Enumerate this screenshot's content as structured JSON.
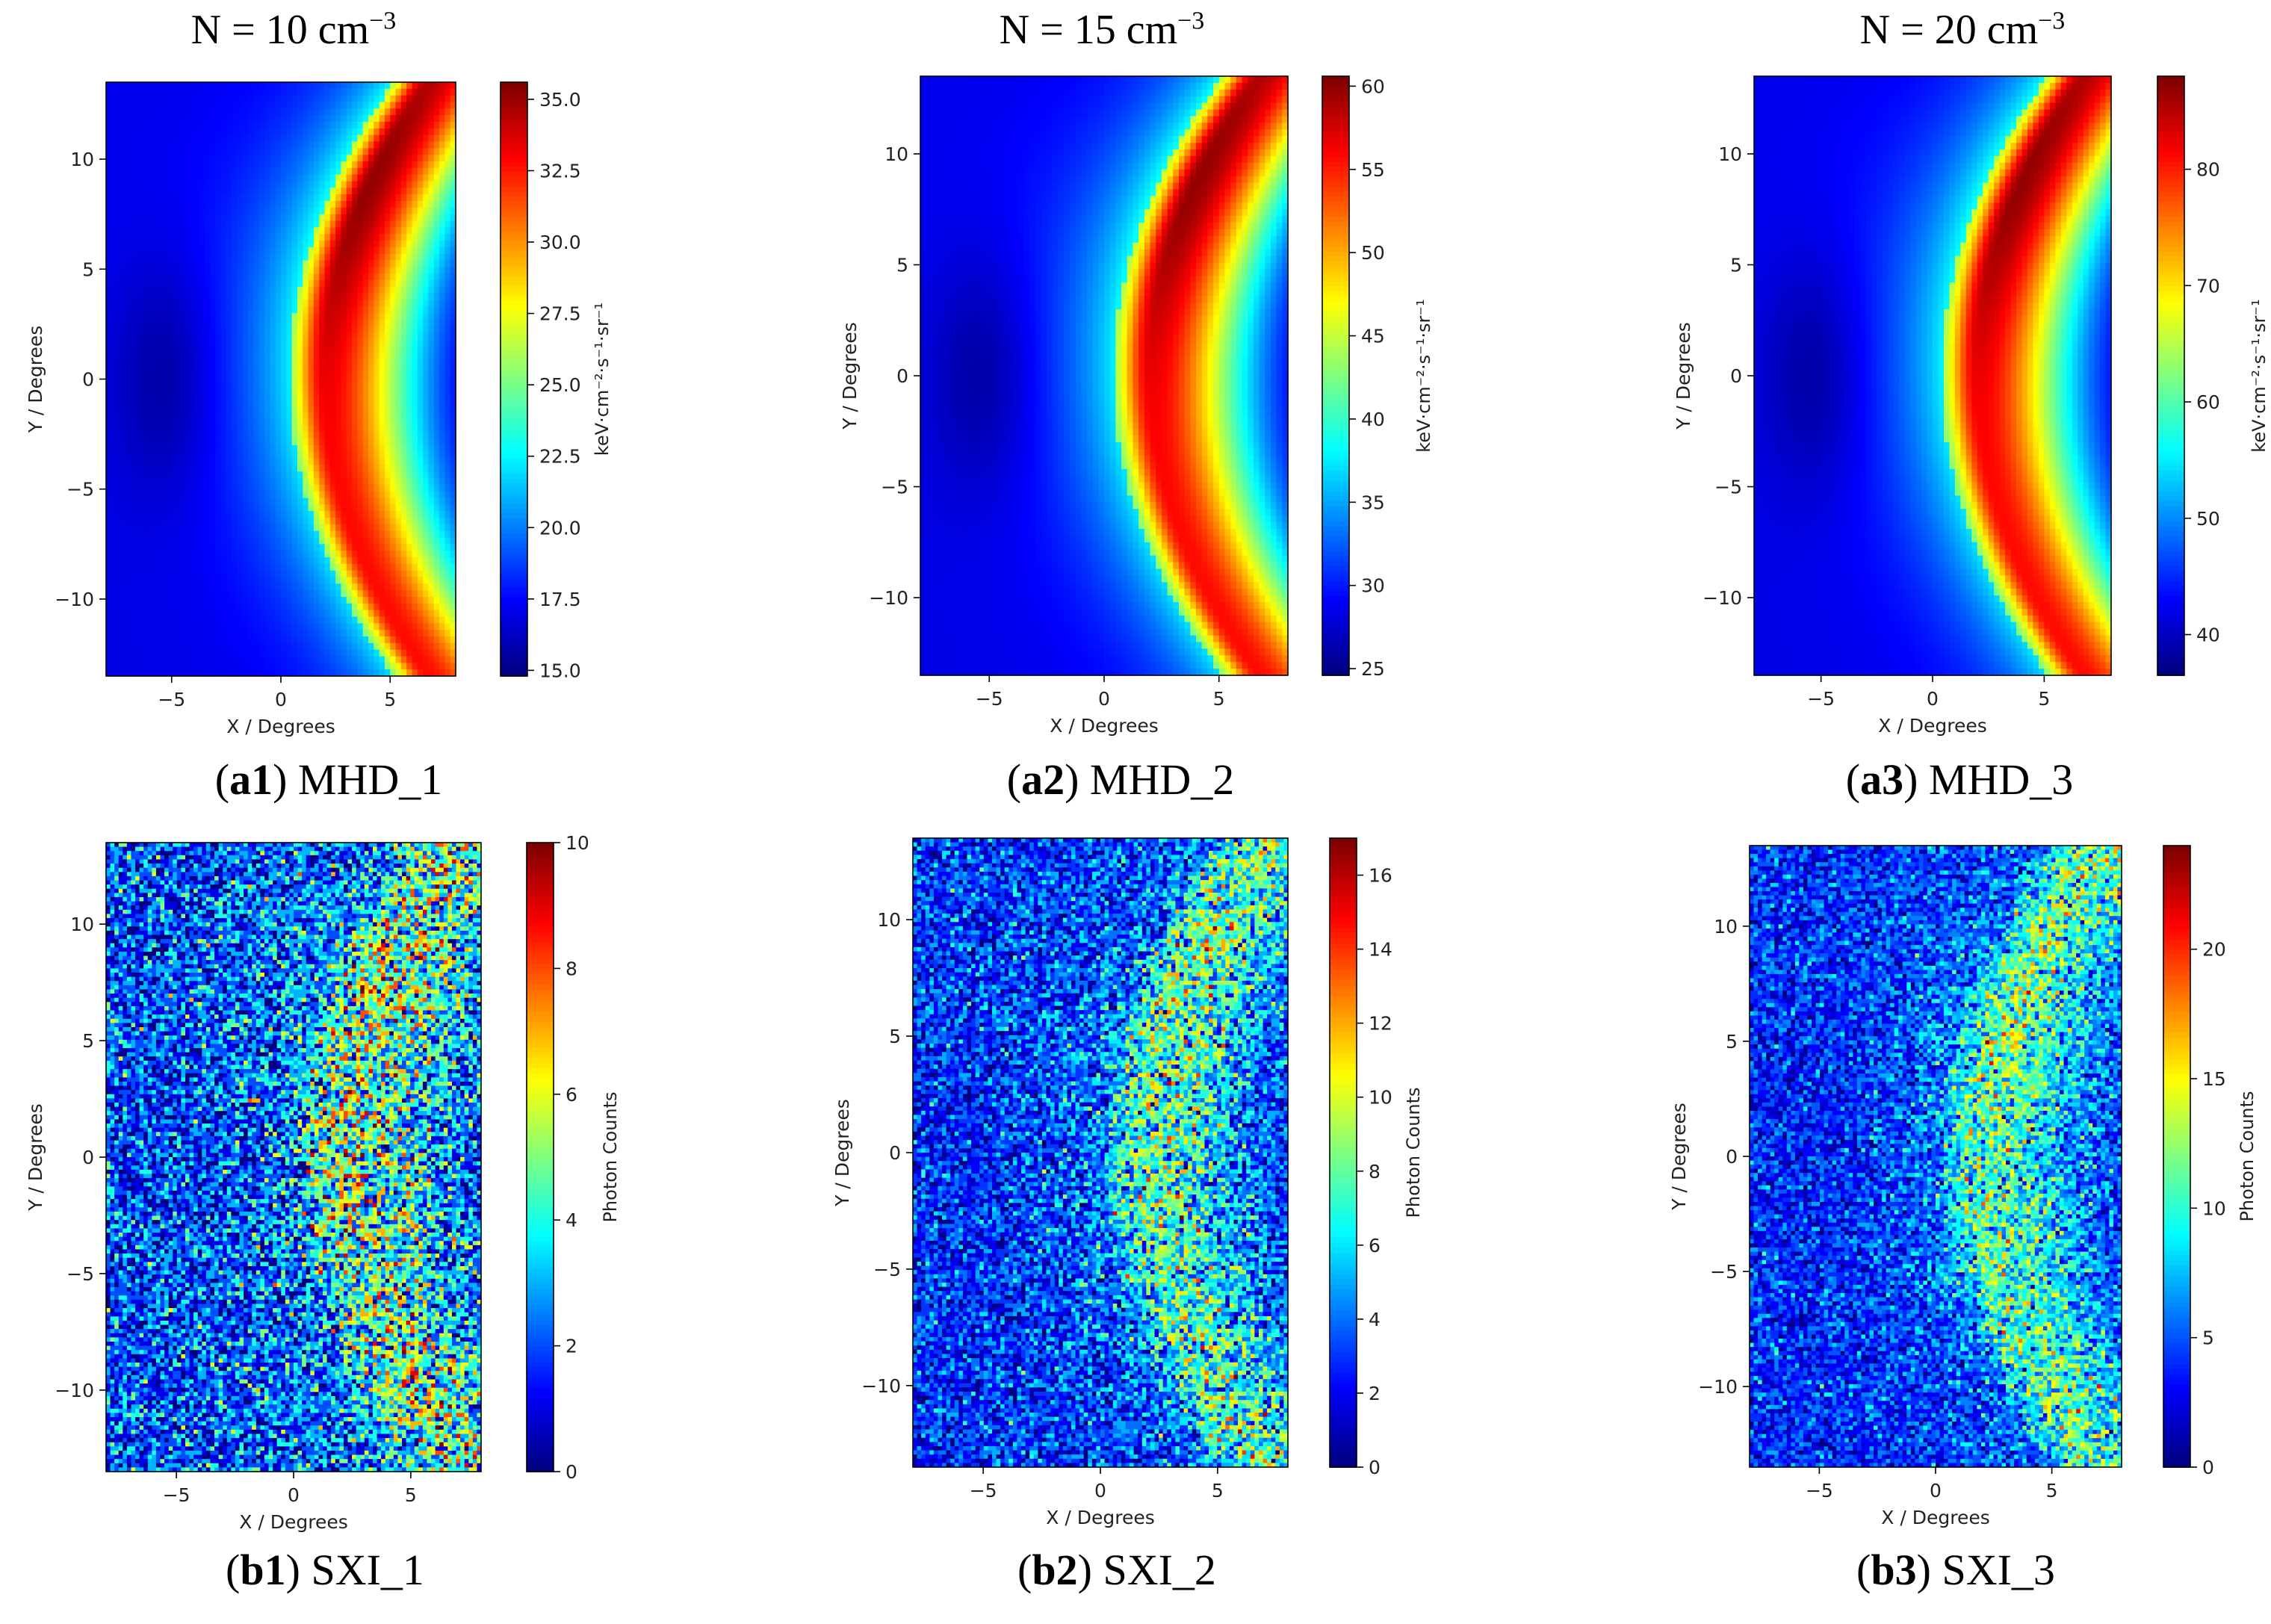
{
  "column_titles": [
    {
      "prefix": "N = ",
      "value": "10",
      "unit": " cm",
      "exp": "−3"
    },
    {
      "prefix": "N = ",
      "value": "15",
      "unit": " cm",
      "exp": "−3"
    },
    {
      "prefix": "N = ",
      "value": "20",
      "unit": " cm",
      "exp": "−3"
    }
  ],
  "captions": [
    {
      "tag": "a1",
      "name": "MHD_1"
    },
    {
      "tag": "a2",
      "name": "MHD_2"
    },
    {
      "tag": "a3",
      "name": "MHD_3"
    },
    {
      "tag": "b1",
      "name": "SXI_1"
    },
    {
      "tag": "b2",
      "name": "SXI_2"
    },
    {
      "tag": "b3",
      "name": "SXI_3"
    }
  ],
  "chart_data": [
    {
      "id": "a1",
      "type": "heatmap",
      "kind": "mhd",
      "title": "MHD_1",
      "xlabel": "X / Degrees",
      "ylabel": "Y / Degrees",
      "xlim": [
        -8,
        8
      ],
      "ylim": [
        -13.5,
        13.5
      ],
      "xticks": [
        -5,
        0,
        5
      ],
      "yticks": [
        -10,
        -5,
        0,
        5,
        10
      ],
      "cbar_label": "keV·cm⁻²·s⁻¹·sr⁻¹",
      "clim": [
        14.8,
        35.6
      ],
      "cbar_ticks": [
        "15.0",
        "17.5",
        "20.0",
        "22.5",
        "25.0",
        "27.5",
        "30.0",
        "32.5",
        "35.0"
      ],
      "cbar_tick_values": [
        15.0,
        17.5,
        20.0,
        22.5,
        25.0,
        27.5,
        30.0,
        32.5,
        35.0
      ]
    },
    {
      "id": "a2",
      "type": "heatmap",
      "kind": "mhd",
      "title": "MHD_2",
      "xlabel": "X / Degrees",
      "ylabel": "Y / Degrees",
      "xlim": [
        -8,
        8
      ],
      "ylim": [
        -13.5,
        13.5
      ],
      "xticks": [
        -5,
        0,
        5
      ],
      "yticks": [
        -10,
        -5,
        0,
        5,
        10
      ],
      "cbar_label": "keV·cm⁻²·s⁻¹·sr⁻¹",
      "clim": [
        24.6,
        60.6
      ],
      "cbar_ticks": [
        "25",
        "30",
        "35",
        "40",
        "45",
        "50",
        "55",
        "60"
      ],
      "cbar_tick_values": [
        25,
        30,
        35,
        40,
        45,
        50,
        55,
        60
      ]
    },
    {
      "id": "a3",
      "type": "heatmap",
      "kind": "mhd",
      "title": "MHD_3",
      "xlabel": "X / Degrees",
      "ylabel": "Y / Degrees",
      "xlim": [
        -8,
        8
      ],
      "ylim": [
        -13.5,
        13.5
      ],
      "xticks": [
        -5,
        0,
        5
      ],
      "yticks": [
        -10,
        -5,
        0,
        5,
        10
      ],
      "cbar_label": "keV·cm⁻²·s⁻¹·sr⁻¹",
      "clim": [
        36.5,
        88
      ],
      "cbar_ticks": [
        "40",
        "50",
        "60",
        "70",
        "80"
      ],
      "cbar_tick_values": [
        40,
        50,
        60,
        70,
        80
      ]
    },
    {
      "id": "b1",
      "type": "heatmap",
      "kind": "sxi",
      "title": "SXI_1",
      "xlabel": "X / Degrees",
      "ylabel": "Y / Degrees",
      "xlim": [
        -8,
        8
      ],
      "ylim": [
        -13.5,
        13.5
      ],
      "xticks": [
        -5,
        0,
        5
      ],
      "yticks": [
        -10,
        -5,
        0,
        5,
        10
      ],
      "cbar_label": "Photon Counts",
      "clim": [
        0,
        10
      ],
      "cbar_ticks": [
        "0",
        "2",
        "4",
        "6",
        "8",
        "10"
      ],
      "cbar_tick_values": [
        0,
        2,
        4,
        6,
        8,
        10
      ],
      "peak_mean": 5.2
    },
    {
      "id": "b2",
      "type": "heatmap",
      "kind": "sxi",
      "title": "SXI_2",
      "xlabel": "X / Degrees",
      "ylabel": "Y / Degrees",
      "xlim": [
        -8,
        8
      ],
      "ylim": [
        -13.5,
        13.5
      ],
      "xticks": [
        -5,
        0,
        5
      ],
      "yticks": [
        -10,
        -5,
        0,
        5,
        10
      ],
      "cbar_label": "Photon Counts",
      "clim": [
        0,
        17
      ],
      "cbar_ticks": [
        "0",
        "2",
        "4",
        "6",
        "8",
        "10",
        "12",
        "14",
        "16"
      ],
      "cbar_tick_values": [
        0,
        2,
        4,
        6,
        8,
        10,
        12,
        14,
        16
      ],
      "peak_mean": 8.5
    },
    {
      "id": "b3",
      "type": "heatmap",
      "kind": "sxi",
      "title": "SXI_3",
      "xlabel": "X / Degrees",
      "ylabel": "Y / Degrees",
      "xlim": [
        -8,
        8
      ],
      "ylim": [
        -13.5,
        13.5
      ],
      "xticks": [
        -5,
        0,
        5
      ],
      "yticks": [
        -10,
        -5,
        0,
        5,
        10
      ],
      "cbar_label": "Photon Counts",
      "clim": [
        0,
        24
      ],
      "cbar_ticks": [
        "0",
        "5",
        "10",
        "15",
        "20"
      ],
      "cbar_tick_values": [
        0,
        5,
        10,
        15,
        20
      ],
      "peak_mean": 12.5
    }
  ]
}
